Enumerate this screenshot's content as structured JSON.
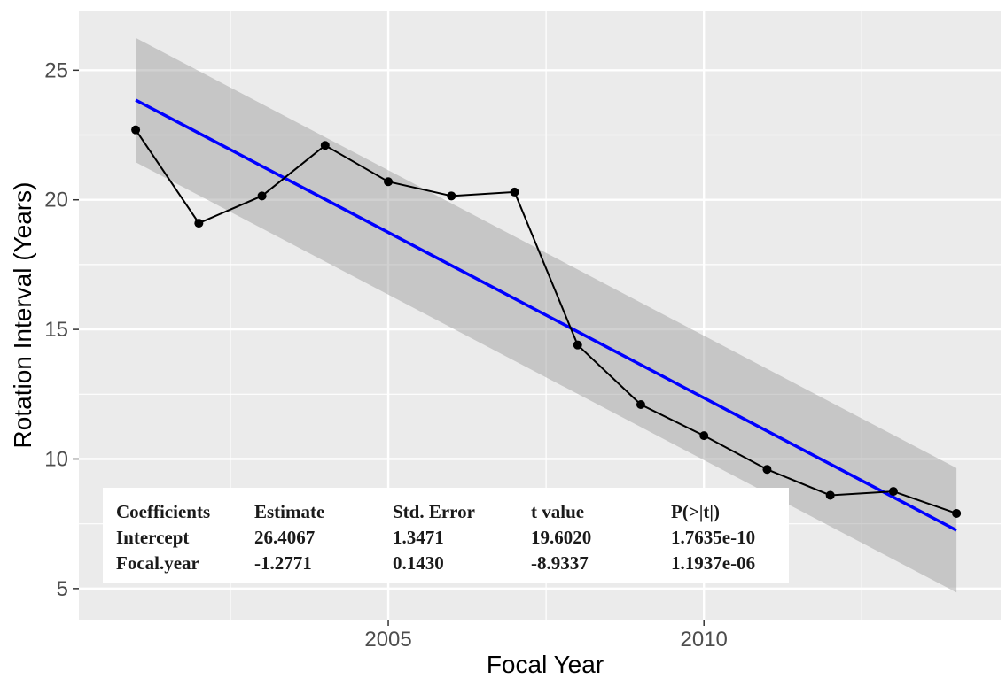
{
  "chart_data": {
    "type": "line",
    "xlabel": "Focal Year",
    "ylabel": "Rotation Interval (Years)",
    "xlim": [
      2000.1,
      2014.7
    ],
    "ylim": [
      3.8,
      27.3
    ],
    "x_ticks": [
      2005,
      2010
    ],
    "x_minor_ticks": [
      2002.5,
      2007.5,
      2012.5
    ],
    "y_ticks": [
      5,
      10,
      15,
      20,
      25
    ],
    "y_minor_ticks": [
      7.5,
      12.5,
      17.5,
      22.5
    ],
    "x_tick_labels": [
      "2005",
      "2010"
    ],
    "y_tick_labels": [
      "5",
      "10",
      "15",
      "20",
      "25"
    ],
    "grid": true,
    "points": {
      "x": [
        2001,
        2002,
        2003,
        2004,
        2005,
        2006,
        2007,
        2008,
        2009,
        2010,
        2011,
        2012,
        2013,
        2014
      ],
      "y": [
        22.7,
        19.1,
        20.15,
        22.1,
        20.7,
        20.15,
        20.3,
        14.4,
        12.1,
        10.9,
        9.6,
        8.6,
        8.75,
        7.9
      ]
    },
    "fit_line": {
      "x": [
        2001,
        2014
      ],
      "y": [
        23.85,
        7.25
      ]
    },
    "confidence_band": {
      "x": [
        2001,
        2014
      ],
      "upper": [
        26.25,
        9.65
      ],
      "lower": [
        21.45,
        4.85
      ]
    },
    "colors": {
      "panel": "#ebebeb",
      "grid": "#ffffff",
      "line": "#000000",
      "fit": "#0000ff",
      "band": "#999999"
    }
  },
  "coefficients_table": {
    "headers": [
      "Coefficients",
      "Estimate",
      "Std. Error",
      "t value",
      "P(>|t|)"
    ],
    "rows": [
      [
        "Intercept",
        "26.4067",
        "1.3471",
        "19.6020",
        "1.7635e-10"
      ],
      [
        "Focal.year",
        "-1.2771",
        "0.1430",
        "-8.9337",
        "1.1937e-06"
      ]
    ]
  }
}
